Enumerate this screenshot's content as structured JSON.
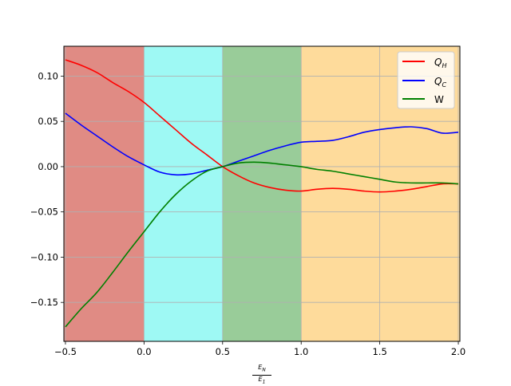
{
  "chart_data": {
    "type": "line",
    "xlim": [
      -0.51,
      2.01
    ],
    "ylim": [
      -0.193,
      0.133
    ],
    "xticks": [
      -0.5,
      0.0,
      0.5,
      1.0,
      1.5,
      2.0
    ],
    "xtick_labels": [
      "−0.5",
      "0.0",
      "0.5",
      "1.0",
      "1.5",
      "2.0"
    ],
    "yticks": [
      -0.15,
      -0.1,
      -0.05,
      0.0,
      0.05,
      0.1
    ],
    "ytick_labels": [
      "−0.15",
      "−0.10",
      "−0.05",
      "0.00",
      "0.05",
      "0.10"
    ],
    "grid": true,
    "legend_position": "top-right",
    "xlabel": {
      "numerator": "E_N",
      "denominator": "E_1",
      "num_main": "E",
      "num_sub": "N",
      "den_main": "E",
      "den_sub": "1"
    },
    "regions": [
      {
        "x0": -0.51,
        "x1": 0.0,
        "color": "#e08b84"
      },
      {
        "x0": 0.0,
        "x1": 0.5,
        "color": "#9ef9f4"
      },
      {
        "x0": 0.5,
        "x1": 1.0,
        "color": "#99cc99"
      },
      {
        "x0": 1.0,
        "x1": 2.01,
        "color": "#fedb9b"
      }
    ],
    "series": [
      {
        "name": "Q_H",
        "label_main": "Q",
        "label_sub": "H",
        "color": "#ff0000",
        "x": [
          -0.5,
          -0.4,
          -0.3,
          -0.2,
          -0.1,
          0.0,
          0.1,
          0.2,
          0.3,
          0.4,
          0.5,
          0.6,
          0.7,
          0.8,
          0.9,
          1.0,
          1.1,
          1.2,
          1.3,
          1.4,
          1.5,
          1.6,
          1.7,
          1.8,
          1.9,
          2.0
        ],
        "y": [
          0.118,
          0.112,
          0.104,
          0.093,
          0.083,
          0.071,
          0.056,
          0.041,
          0.026,
          0.013,
          0.0,
          -0.01,
          -0.018,
          -0.023,
          -0.026,
          -0.027,
          -0.025,
          -0.024,
          -0.025,
          -0.027,
          -0.028,
          -0.027,
          -0.025,
          -0.022,
          -0.019,
          -0.019
        ]
      },
      {
        "name": "Q_C",
        "label_main": "Q",
        "label_sub": "C",
        "color": "#0000ff",
        "x": [
          -0.5,
          -0.4,
          -0.3,
          -0.2,
          -0.1,
          0.0,
          0.1,
          0.2,
          0.3,
          0.4,
          0.5,
          0.6,
          0.7,
          0.8,
          0.9,
          1.0,
          1.1,
          1.2,
          1.3,
          1.4,
          1.5,
          1.6,
          1.7,
          1.8,
          1.9,
          2.0
        ],
        "y": [
          0.059,
          0.046,
          0.034,
          0.022,
          0.011,
          0.002,
          -0.006,
          -0.009,
          -0.008,
          -0.004,
          0.0,
          0.006,
          0.012,
          0.018,
          0.023,
          0.027,
          0.028,
          0.029,
          0.033,
          0.038,
          0.041,
          0.043,
          0.044,
          0.042,
          0.037,
          0.038
        ]
      },
      {
        "name": "W",
        "label_main": "W",
        "label_sub": "",
        "color": "#008000",
        "x": [
          -0.5,
          -0.4,
          -0.3,
          -0.2,
          -0.1,
          0.0,
          0.1,
          0.2,
          0.3,
          0.4,
          0.5,
          0.6,
          0.7,
          0.8,
          0.9,
          1.0,
          1.1,
          1.2,
          1.3,
          1.4,
          1.5,
          1.6,
          1.7,
          1.8,
          1.9,
          2.0
        ],
        "y": [
          -0.177,
          -0.157,
          -0.139,
          -0.117,
          -0.094,
          -0.072,
          -0.05,
          -0.031,
          -0.016,
          -0.005,
          0.0,
          0.004,
          0.005,
          0.004,
          0.002,
          0.0,
          -0.003,
          -0.005,
          -0.008,
          -0.011,
          -0.014,
          -0.017,
          -0.018,
          -0.018,
          -0.018,
          -0.019
        ]
      }
    ]
  }
}
